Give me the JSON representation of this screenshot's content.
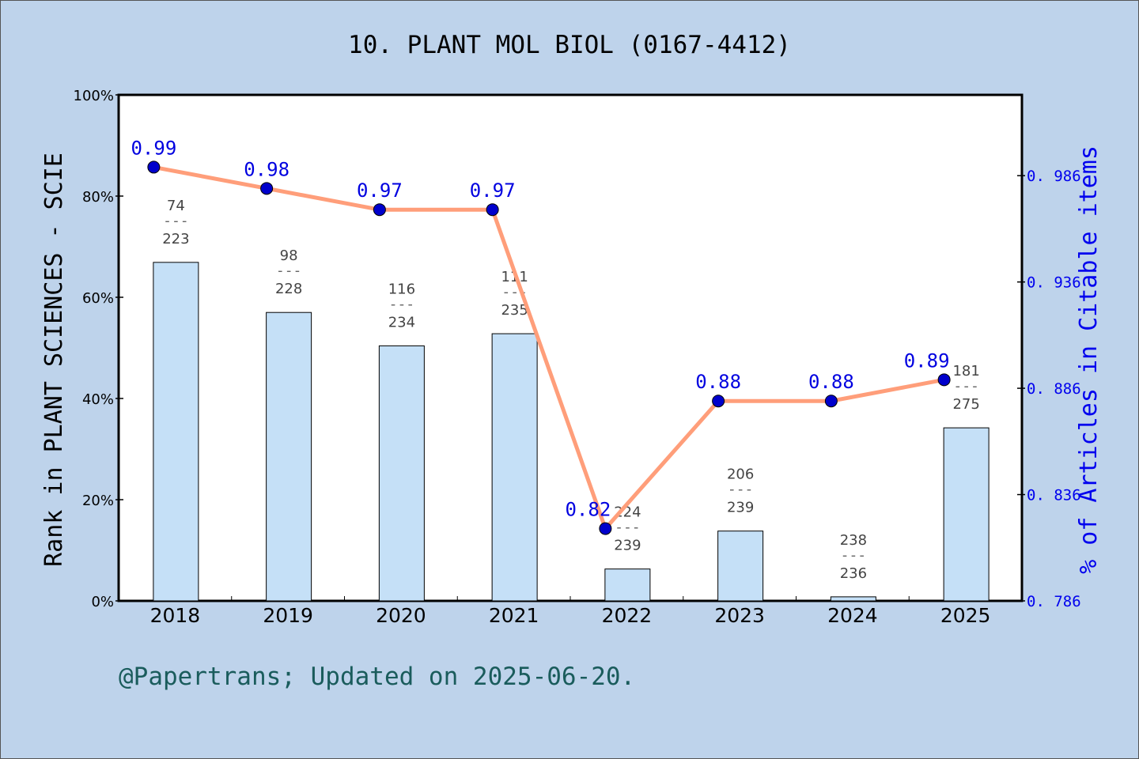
{
  "chart_data": {
    "type": "bar+line",
    "title": "10. PLANT MOL BIOL (0167-4412)",
    "ylabel": "Rank in PLANT SCIENCES - SCIE",
    "y2label": "% of Articles in Citable items",
    "footer": "@Papertrans; Updated on 2025-06-20.",
    "categories": [
      "2018",
      "2019",
      "2020",
      "2021",
      "2022",
      "2023",
      "2024",
      "2025"
    ],
    "ylim": [
      0,
      100
    ],
    "yticks": [
      "0%",
      "20%",
      "40%",
      "60%",
      "80%",
      "100%"
    ],
    "y2lim": [
      0.786,
      1.024
    ],
    "y2ticks": [
      "0.786",
      "0.836",
      "0.886",
      "0.936",
      "0.986"
    ],
    "bars": {
      "values_percent": [
        66.9,
        57.0,
        50.4,
        52.8,
        6.3,
        13.8,
        0.8,
        34.2
      ],
      "rank": [
        "74",
        "98",
        "116",
        "111",
        "224",
        "206",
        "238",
        "181"
      ],
      "total": [
        "223",
        "228",
        "234",
        "235",
        "239",
        "239",
        "236",
        "275"
      ]
    },
    "line": {
      "values": [
        0.99,
        0.98,
        0.97,
        0.97,
        0.82,
        0.88,
        0.88,
        0.89
      ],
      "labels": [
        "0.99",
        "0.98",
        "0.97",
        "0.97",
        "0.82",
        "0.88",
        "0.88",
        "0.89"
      ]
    },
    "colors": {
      "bar": "#c5e0f7",
      "line": "#ff9e7a",
      "point": "#0000cc",
      "label": "#0000e0",
      "background": "#bed3eb",
      "footer": "#1a5c5c"
    },
    "grid": false
  }
}
